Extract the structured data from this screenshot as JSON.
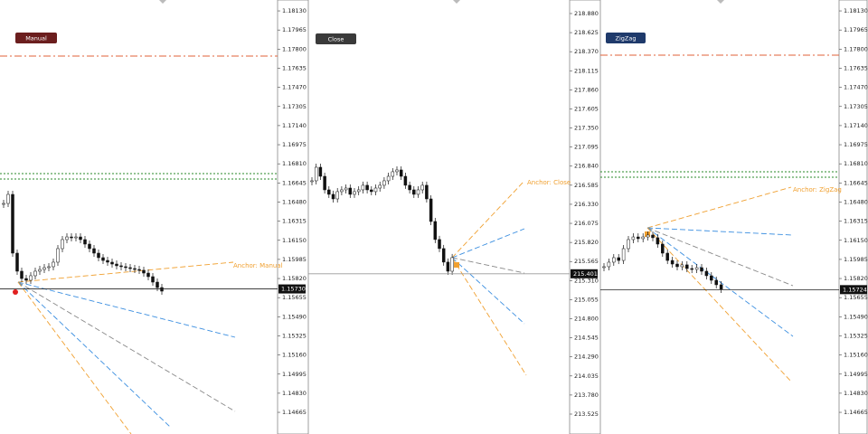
{
  "panels": [
    {
      "button": "Manual",
      "button_color": "#6b1e1e",
      "anchor_label": "Anchor: Manual",
      "price": {
        "value": 1.1573,
        "label": "1.15730"
      },
      "ylim": [
        1.14478,
        1.18224
      ],
      "yticks": [
        {
          "value": 1.1813,
          "label": "1.18130"
        },
        {
          "value": 1.17965,
          "label": "1.17965"
        },
        {
          "value": 1.178,
          "label": "1.17800"
        },
        {
          "value": 1.17635,
          "label": "1.17635"
        },
        {
          "value": 1.1747,
          "label": "1.17470"
        },
        {
          "value": 1.17305,
          "label": "1.17305"
        },
        {
          "value": 1.1714,
          "label": "1.17140"
        },
        {
          "value": 1.16975,
          "label": "1.16975"
        },
        {
          "value": 1.1681,
          "label": "1.16810"
        },
        {
          "value": 1.16645,
          "label": "1.16645"
        },
        {
          "value": 1.1648,
          "label": "1.16480"
        },
        {
          "value": 1.16315,
          "label": "1.16315"
        },
        {
          "value": 1.1615,
          "label": "1.16150"
        },
        {
          "value": 1.15985,
          "label": "1.15985"
        },
        {
          "value": 1.1582,
          "label": "1.15820"
        },
        {
          "value": 1.15655,
          "label": "1.15655"
        },
        {
          "value": 1.1549,
          "label": "1.15490"
        },
        {
          "value": 1.15325,
          "label": "1.15325"
        },
        {
          "value": 1.1516,
          "label": "1.15160"
        },
        {
          "value": 1.14995,
          "label": "1.14995"
        },
        {
          "value": 1.1483,
          "label": "1.14830"
        },
        {
          "value": 1.14665,
          "label": "1.14665"
        }
      ],
      "closes": [
        1.16468,
        1.16546,
        1.16039,
        1.15883,
        1.1582,
        1.15805,
        1.15844,
        1.15883,
        1.15898,
        1.15914,
        1.15922,
        1.15961,
        1.16078,
        1.16156,
        1.16179,
        1.16172,
        1.16179,
        1.16156,
        1.16117,
        1.16078,
        1.16039,
        1.16,
        1.15976,
        1.15961,
        1.15945,
        1.1593,
        1.15922,
        1.15914,
        1.15906,
        1.15898,
        1.15891,
        1.15867,
        1.15836,
        1.15789,
        1.15742,
        1.15711
      ]
    },
    {
      "button": "Close",
      "button_color": "#3a3a3a",
      "anchor_label": "Anchor: Close",
      "price": {
        "value": 215.401,
        "label": "215.401"
      },
      "ylim": [
        213.259,
        219.061
      ],
      "yticks": [
        {
          "value": 218.88,
          "label": "218.880"
        },
        {
          "value": 218.625,
          "label": "218.625"
        },
        {
          "value": 218.37,
          "label": "218.370"
        },
        {
          "value": 218.115,
          "label": "218.115"
        },
        {
          "value": 217.86,
          "label": "217.860"
        },
        {
          "value": 217.605,
          "label": "217.605"
        },
        {
          "value": 217.35,
          "label": "217.350"
        },
        {
          "value": 217.095,
          "label": "217.095"
        },
        {
          "value": 216.84,
          "label": "216.840"
        },
        {
          "value": 216.585,
          "label": "216.585"
        },
        {
          "value": 216.33,
          "label": "216.330"
        },
        {
          "value": 216.075,
          "label": "216.075"
        },
        {
          "value": 215.82,
          "label": "215.820"
        },
        {
          "value": 215.565,
          "label": "215.565"
        },
        {
          "value": 215.31,
          "label": "215.310"
        },
        {
          "value": 215.055,
          "label": "215.055"
        },
        {
          "value": 214.8,
          "label": "214.800"
        },
        {
          "value": 214.545,
          "label": "214.545"
        },
        {
          "value": 214.29,
          "label": "214.290"
        },
        {
          "value": 214.035,
          "label": "214.035"
        },
        {
          "value": 213.78,
          "label": "213.780"
        },
        {
          "value": 213.525,
          "label": "213.525"
        }
      ],
      "closes": [
        216.644,
        216.825,
        216.704,
        216.523,
        216.463,
        216.402,
        216.499,
        216.523,
        216.547,
        216.463,
        216.499,
        216.523,
        216.584,
        216.523,
        216.499,
        216.547,
        216.584,
        216.644,
        216.704,
        216.765,
        216.789,
        216.704,
        216.584,
        216.523,
        216.463,
        216.523,
        216.584,
        216.402,
        216.1,
        215.859,
        215.738,
        215.557,
        215.435,
        215.617
      ]
    },
    {
      "button": "ZigZag",
      "button_color": "#1f3a6b",
      "anchor_label": "Anchor: ZigZag",
      "price": {
        "value": 1.15724,
        "label": "1.15724"
      },
      "ylim": [
        1.14478,
        1.18224
      ],
      "yticks": [
        {
          "value": 1.1813,
          "label": "1.18130"
        },
        {
          "value": 1.17965,
          "label": "1.17965"
        },
        {
          "value": 1.178,
          "label": "1.17800"
        },
        {
          "value": 1.17635,
          "label": "1.17635"
        },
        {
          "value": 1.1747,
          "label": "1.17470"
        },
        {
          "value": 1.17305,
          "label": "1.17305"
        },
        {
          "value": 1.1714,
          "label": "1.17140"
        },
        {
          "value": 1.16975,
          "label": "1.16975"
        },
        {
          "value": 1.1681,
          "label": "1.16810"
        },
        {
          "value": 1.16645,
          "label": "1.16645"
        },
        {
          "value": 1.1648,
          "label": "1.16480"
        },
        {
          "value": 1.16315,
          "label": "1.16315"
        },
        {
          "value": 1.1615,
          "label": "1.16150"
        },
        {
          "value": 1.15985,
          "label": "1.15985"
        },
        {
          "value": 1.1582,
          "label": "1.15820"
        },
        {
          "value": 1.15655,
          "label": "1.15655"
        },
        {
          "value": 1.1549,
          "label": "1.15490"
        },
        {
          "value": 1.15325,
          "label": "1.15325"
        },
        {
          "value": 1.1516,
          "label": "1.15160"
        },
        {
          "value": 1.14995,
          "label": "1.14995"
        },
        {
          "value": 1.1483,
          "label": "1.14830"
        },
        {
          "value": 1.14665,
          "label": "1.14665"
        }
      ],
      "closes": [
        1.15922,
        1.15961,
        1.16,
        1.15976,
        1.16078,
        1.16156,
        1.16179,
        1.16164,
        1.16179,
        1.16195,
        1.16172,
        1.16117,
        1.16039,
        1.15976,
        1.15945,
        1.15922,
        1.15938,
        1.15906,
        1.15898,
        1.15914,
        1.15883,
        1.15844,
        1.15805,
        1.15766,
        1.15727
      ]
    }
  ]
}
